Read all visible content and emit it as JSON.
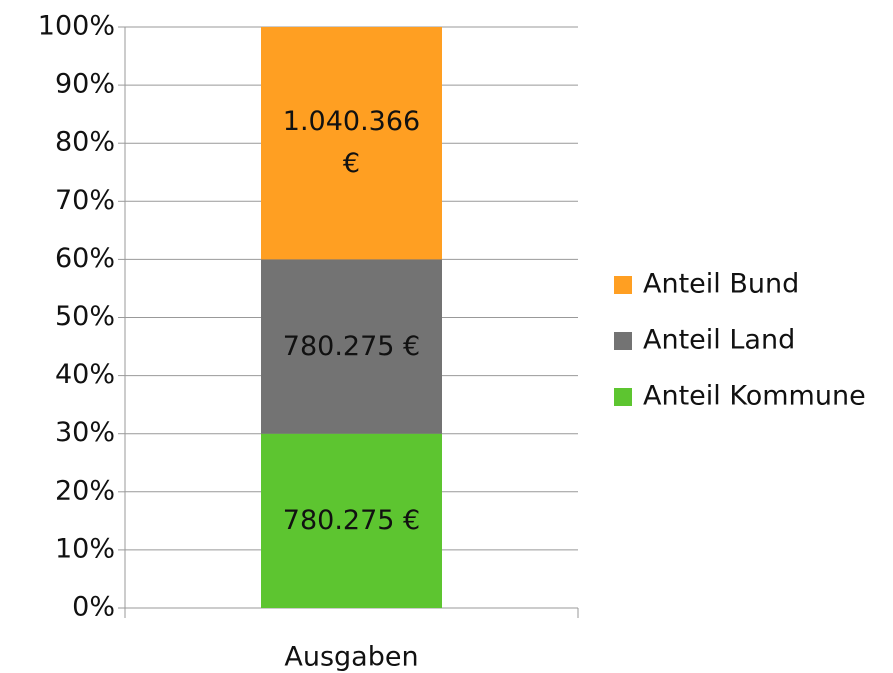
{
  "chart_data": {
    "type": "bar",
    "stacked": "percent",
    "categories": [
      "Ausgaben"
    ],
    "series": [
      {
        "name": "Anteil Kommune",
        "color": "#5dc530",
        "values": [
          780275
        ],
        "value_labels": [
          "780.275 €"
        ]
      },
      {
        "name": "Anteil Land",
        "color": "#737373",
        "values": [
          780275
        ],
        "value_labels": [
          "780.275 €"
        ]
      },
      {
        "name": "Anteil Bund",
        "color": "#ff9f22",
        "values": [
          1040366
        ],
        "value_labels": [
          "1.040.366 €"
        ]
      }
    ],
    "ylim": [
      0,
      100
    ],
    "yticks": [
      {
        "value": 0,
        "label": "0%"
      },
      {
        "value": 10,
        "label": "10%"
      },
      {
        "value": 20,
        "label": "20%"
      },
      {
        "value": 30,
        "label": "30%"
      },
      {
        "value": 40,
        "label": "40%"
      },
      {
        "value": 50,
        "label": "50%"
      },
      {
        "value": 60,
        "label": "60%"
      },
      {
        "value": 70,
        "label": "70%"
      },
      {
        "value": 80,
        "label": "80%"
      },
      {
        "value": 90,
        "label": "90%"
      },
      {
        "value": 100,
        "label": "100%"
      }
    ],
    "grid": true,
    "legend": "right"
  }
}
